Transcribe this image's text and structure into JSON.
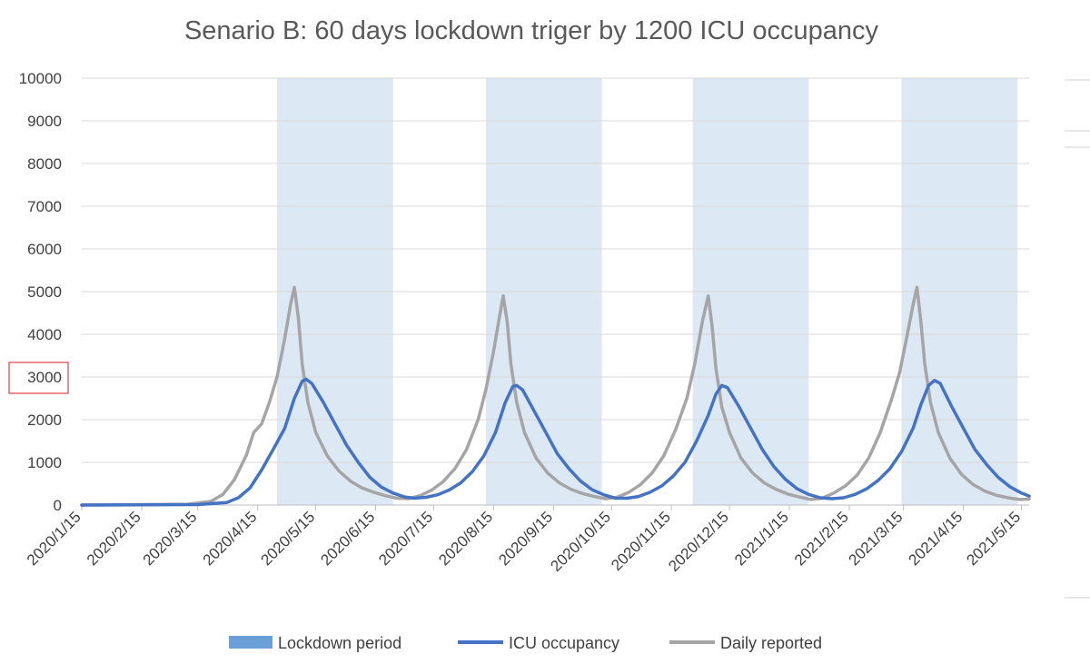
{
  "chart_data": {
    "type": "line",
    "title": "Senario B: 60 days lockdown triger by 1200 ICU occupancy",
    "ylim": [
      0,
      10000
    ],
    "yticks": [
      0,
      1000,
      2000,
      3000,
      4000,
      5000,
      6000,
      7000,
      8000,
      9000,
      10000
    ],
    "ytick_labels": [
      "0",
      "1000",
      "2000",
      "3000",
      "4000",
      "5000",
      "6000",
      "7000",
      "8000",
      "9000",
      "10000"
    ],
    "highlighted_ytick": "3000",
    "xlim": [
      "2020-01-15",
      "2021-05-19"
    ],
    "xticks": [
      "2020-01-15",
      "2020-02-15",
      "2020-03-15",
      "2020-04-15",
      "2020-05-15",
      "2020-06-15",
      "2020-07-15",
      "2020-08-15",
      "2020-09-15",
      "2020-10-15",
      "2020-11-15",
      "2020-12-15",
      "2021-01-15",
      "2021-02-15",
      "2021-03-15",
      "2021-04-15",
      "2021-05-15"
    ],
    "xtick_labels": [
      "2020/1/15",
      "2020/2/15",
      "2020/3/15",
      "2020/4/15",
      "2020/5/15",
      "2020/6/15",
      "2020/7/15",
      "2020/8/15",
      "2020/9/15",
      "2020/10/15",
      "2020/11/15",
      "2020/12/15",
      "2021/1/15",
      "2021/2/15",
      "2021/3/15",
      "2021/4/15",
      "2021/5/15"
    ],
    "grid": true,
    "legend_position": "bottom",
    "lockdown_periods": {
      "name": "Lockdown period",
      "color": "#dde8f5",
      "legend_color": "#6a9fd8",
      "ranges": [
        [
          "2020-04-25",
          "2020-06-24"
        ],
        [
          "2020-08-11",
          "2020-10-10"
        ],
        [
          "2020-11-26",
          "2021-01-25"
        ],
        [
          "2021-03-14",
          "2021-05-13"
        ]
      ]
    },
    "series": [
      {
        "name": "ICU occupancy",
        "color": "#4472c4",
        "points": [
          [
            "2020-01-15",
            0
          ],
          [
            "2020-03-15",
            10
          ],
          [
            "2020-03-30",
            60
          ],
          [
            "2020-04-05",
            170
          ],
          [
            "2020-04-11",
            400
          ],
          [
            "2020-04-17",
            820
          ],
          [
            "2020-04-23",
            1300
          ],
          [
            "2020-04-29",
            1800
          ],
          [
            "2020-05-04",
            2500
          ],
          [
            "2020-05-08",
            2900
          ],
          [
            "2020-05-10",
            2950
          ],
          [
            "2020-05-13",
            2850
          ],
          [
            "2020-05-19",
            2400
          ],
          [
            "2020-05-25",
            1900
          ],
          [
            "2020-05-31",
            1400
          ],
          [
            "2020-06-06",
            1000
          ],
          [
            "2020-06-12",
            650
          ],
          [
            "2020-06-18",
            420
          ],
          [
            "2020-06-24",
            280
          ],
          [
            "2020-06-30",
            190
          ],
          [
            "2020-07-05",
            160
          ],
          [
            "2020-07-11",
            180
          ],
          [
            "2020-07-17",
            240
          ],
          [
            "2020-07-23",
            350
          ],
          [
            "2020-07-29",
            520
          ],
          [
            "2020-08-04",
            780
          ],
          [
            "2020-08-10",
            1150
          ],
          [
            "2020-08-16",
            1700
          ],
          [
            "2020-08-21",
            2400
          ],
          [
            "2020-08-25",
            2780
          ],
          [
            "2020-08-27",
            2800
          ],
          [
            "2020-08-30",
            2700
          ],
          [
            "2020-09-05",
            2200
          ],
          [
            "2020-09-11",
            1700
          ],
          [
            "2020-09-17",
            1200
          ],
          [
            "2020-09-23",
            850
          ],
          [
            "2020-09-29",
            560
          ],
          [
            "2020-10-05",
            360
          ],
          [
            "2020-10-11",
            240
          ],
          [
            "2020-10-17",
            160
          ],
          [
            "2020-10-23",
            160
          ],
          [
            "2020-10-29",
            200
          ],
          [
            "2020-11-04",
            300
          ],
          [
            "2020-11-10",
            450
          ],
          [
            "2020-11-16",
            680
          ],
          [
            "2020-11-22",
            1000
          ],
          [
            "2020-11-28",
            1500
          ],
          [
            "2020-12-04",
            2100
          ],
          [
            "2020-12-08",
            2600
          ],
          [
            "2020-12-11",
            2800
          ],
          [
            "2020-12-14",
            2750
          ],
          [
            "2020-12-20",
            2300
          ],
          [
            "2020-12-26",
            1800
          ],
          [
            "2021-01-01",
            1300
          ],
          [
            "2021-01-07",
            900
          ],
          [
            "2021-01-13",
            600
          ],
          [
            "2021-01-19",
            380
          ],
          [
            "2021-01-25",
            250
          ],
          [
            "2021-01-31",
            170
          ],
          [
            "2021-02-06",
            150
          ],
          [
            "2021-02-12",
            170
          ],
          [
            "2021-02-18",
            250
          ],
          [
            "2021-02-24",
            380
          ],
          [
            "2021-03-02",
            580
          ],
          [
            "2021-03-08",
            850
          ],
          [
            "2021-03-14",
            1250
          ],
          [
            "2021-03-20",
            1800
          ],
          [
            "2021-03-24",
            2350
          ],
          [
            "2021-03-28",
            2800
          ],
          [
            "2021-03-31",
            2920
          ],
          [
            "2021-04-03",
            2850
          ],
          [
            "2021-04-09",
            2300
          ],
          [
            "2021-04-15",
            1800
          ],
          [
            "2021-04-21",
            1300
          ],
          [
            "2021-04-27",
            950
          ],
          [
            "2021-05-03",
            650
          ],
          [
            "2021-05-09",
            430
          ],
          [
            "2021-05-15",
            280
          ],
          [
            "2021-05-19",
            210
          ]
        ]
      },
      {
        "name": "Daily reported",
        "color": "#a5a5a5",
        "points": [
          [
            "2020-01-15",
            0
          ],
          [
            "2020-03-10",
            20
          ],
          [
            "2020-03-22",
            90
          ],
          [
            "2020-03-28",
            250
          ],
          [
            "2020-04-03",
            600
          ],
          [
            "2020-04-09",
            1150
          ],
          [
            "2020-04-13",
            1700
          ],
          [
            "2020-04-17",
            1900
          ],
          [
            "2020-04-21",
            2400
          ],
          [
            "2020-04-25",
            3000
          ],
          [
            "2020-04-29",
            3900
          ],
          [
            "2020-05-02",
            4700
          ],
          [
            "2020-05-04",
            5100
          ],
          [
            "2020-05-06",
            4400
          ],
          [
            "2020-05-08",
            3300
          ],
          [
            "2020-05-11",
            2400
          ],
          [
            "2020-05-15",
            1700
          ],
          [
            "2020-05-21",
            1150
          ],
          [
            "2020-05-27",
            800
          ],
          [
            "2020-06-02",
            560
          ],
          [
            "2020-06-08",
            400
          ],
          [
            "2020-06-14",
            300
          ],
          [
            "2020-06-20",
            220
          ],
          [
            "2020-06-26",
            160
          ],
          [
            "2020-07-02",
            150
          ],
          [
            "2020-07-08",
            220
          ],
          [
            "2020-07-14",
            350
          ],
          [
            "2020-07-20",
            550
          ],
          [
            "2020-07-26",
            850
          ],
          [
            "2020-08-01",
            1300
          ],
          [
            "2020-08-07",
            2000
          ],
          [
            "2020-08-11",
            2700
          ],
          [
            "2020-08-15",
            3600
          ],
          [
            "2020-08-18",
            4400
          ],
          [
            "2020-08-20",
            4900
          ],
          [
            "2020-08-22",
            4300
          ],
          [
            "2020-08-24",
            3300
          ],
          [
            "2020-08-27",
            2400
          ],
          [
            "2020-08-31",
            1700
          ],
          [
            "2020-09-06",
            1100
          ],
          [
            "2020-09-12",
            750
          ],
          [
            "2020-09-18",
            520
          ],
          [
            "2020-09-24",
            370
          ],
          [
            "2020-09-30",
            270
          ],
          [
            "2020-10-06",
            200
          ],
          [
            "2020-10-12",
            150
          ],
          [
            "2020-10-18",
            180
          ],
          [
            "2020-10-24",
            300
          ],
          [
            "2020-10-30",
            480
          ],
          [
            "2020-11-05",
            750
          ],
          [
            "2020-11-11",
            1150
          ],
          [
            "2020-11-17",
            1750
          ],
          [
            "2020-11-23",
            2500
          ],
          [
            "2020-11-27",
            3300
          ],
          [
            "2020-12-01",
            4300
          ],
          [
            "2020-12-04",
            4900
          ],
          [
            "2020-12-06",
            4200
          ],
          [
            "2020-12-08",
            3200
          ],
          [
            "2020-12-11",
            2300
          ],
          [
            "2020-12-15",
            1700
          ],
          [
            "2020-12-21",
            1100
          ],
          [
            "2020-12-27",
            750
          ],
          [
            "2021-01-02",
            520
          ],
          [
            "2021-01-08",
            370
          ],
          [
            "2021-01-14",
            260
          ],
          [
            "2021-01-20",
            190
          ],
          [
            "2021-01-26",
            130
          ],
          [
            "2021-02-01",
            160
          ],
          [
            "2021-02-07",
            280
          ],
          [
            "2021-02-13",
            450
          ],
          [
            "2021-02-19",
            700
          ],
          [
            "2021-02-25",
            1100
          ],
          [
            "2021-03-03",
            1700
          ],
          [
            "2021-03-09",
            2500
          ],
          [
            "2021-03-13",
            3100
          ],
          [
            "2021-03-17",
            4000
          ],
          [
            "2021-03-20",
            4700
          ],
          [
            "2021-03-22",
            5100
          ],
          [
            "2021-03-24",
            4300
          ],
          [
            "2021-03-26",
            3300
          ],
          [
            "2021-03-29",
            2400
          ],
          [
            "2021-04-02",
            1700
          ],
          [
            "2021-04-08",
            1100
          ],
          [
            "2021-04-14",
            720
          ],
          [
            "2021-04-20",
            480
          ],
          [
            "2021-04-26",
            330
          ],
          [
            "2021-05-02",
            230
          ],
          [
            "2021-05-08",
            170
          ],
          [
            "2021-05-14",
            130
          ],
          [
            "2021-05-19",
            140
          ]
        ]
      }
    ]
  }
}
